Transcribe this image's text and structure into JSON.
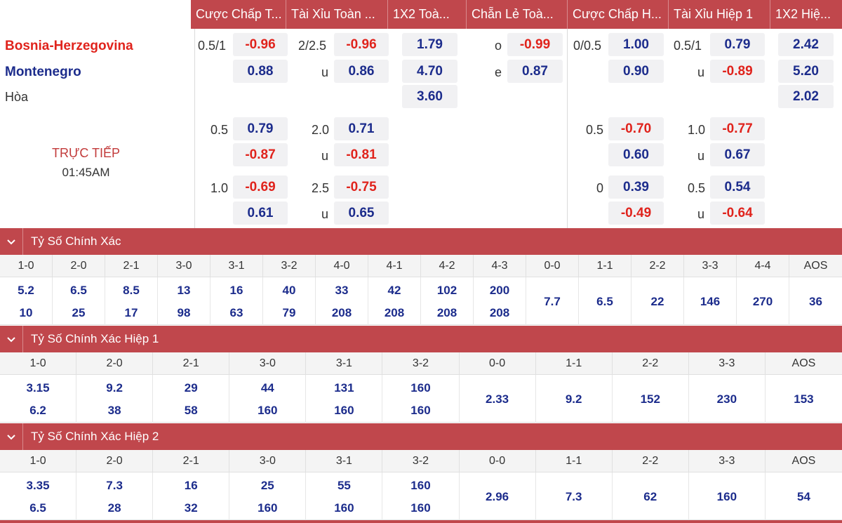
{
  "markets": [
    "Cược Chấp T...",
    "Tài Xỉu Toàn ...",
    "1X2 Toà...",
    "Chẵn Lẻ Toà...",
    "Cược Chấp H...",
    "Tài Xỉu Hiệp 1",
    "1X2 Hiệ..."
  ],
  "match": {
    "home": "Bosnia-Herzegovina",
    "away": "Montenegro",
    "draw": "Hòa",
    "status": "TRỰC TIẾP",
    "time": "01:45AM"
  },
  "lines": {
    "r1": {
      "ft_hdp": "0.5/1",
      "ft_hdp_home": "-0.96",
      "ft_ou": "2/2.5",
      "ft_ou_over": "-0.96",
      "x12_home": "1.79",
      "oe_o_lbl": "o",
      "oe_o": "-0.99",
      "h1_hdp": "0/0.5",
      "h1_hdp_home": "1.00",
      "h1_ou": "0.5/1",
      "h1_ou_over": "0.79",
      "h1_x12_home": "2.42"
    },
    "r2": {
      "ft_hdp_away": "0.88",
      "ft_ou_u": "u",
      "ft_ou_under": "0.86",
      "x12_away": "4.70",
      "oe_e_lbl": "e",
      "oe_e": "0.87",
      "h1_hdp_away": "0.90",
      "h1_ou_u": "u",
      "h1_ou_under": "-0.89",
      "h1_x12_away": "5.20"
    },
    "r3": {
      "x12_draw": "3.60",
      "h1_x12_draw": "2.02"
    },
    "r4": {
      "ft_hdp": "0.5",
      "ft_hdp_home": "0.79",
      "ft_ou": "2.0",
      "ft_ou_over": "0.71",
      "h1_hdp": "0.5",
      "h1_hdp_home": "-0.70",
      "h1_ou": "1.0",
      "h1_ou_over": "-0.77"
    },
    "r5": {
      "ft_hdp_away": "-0.87",
      "ft_ou_u": "u",
      "ft_ou_under": "-0.81",
      "h1_hdp_away": "0.60",
      "h1_ou_u": "u",
      "h1_ou_under": "0.67"
    },
    "r6": {
      "ft_hdp": "1.0",
      "ft_hdp_home": "-0.69",
      "ft_ou": "2.5",
      "ft_ou_over": "-0.75",
      "h1_hdp": "0",
      "h1_hdp_home": "0.39",
      "h1_ou": "0.5",
      "h1_ou_over": "0.54"
    },
    "r7": {
      "ft_hdp_away": "0.61",
      "ft_ou_u": "u",
      "ft_ou_under": "0.65",
      "h1_hdp_away": "-0.49",
      "h1_ou_u": "u",
      "h1_ou_under": "-0.64"
    }
  },
  "sections": [
    {
      "title": "Tỷ Số Chính Xác",
      "scores": [
        "1-0",
        "2-0",
        "2-1",
        "3-0",
        "3-1",
        "3-2",
        "4-0",
        "4-1",
        "4-2",
        "4-3",
        "0-0",
        "1-1",
        "2-2",
        "3-3",
        "4-4",
        "AOS"
      ],
      "top": [
        "5.2",
        "6.5",
        "8.5",
        "13",
        "16",
        "40",
        "33",
        "42",
        "102",
        "200",
        "",
        "",
        "",
        "",
        "",
        ""
      ],
      "bottom": [
        "10",
        "25",
        "17",
        "98",
        "63",
        "79",
        "208",
        "208",
        "208",
        "208",
        "",
        "",
        "",
        "",
        "",
        ""
      ],
      "single": [
        "",
        "",
        "",
        "",
        "",
        "",
        "",
        "",
        "",
        "",
        "7.7",
        "6.5",
        "22",
        "146",
        "270",
        "36"
      ]
    },
    {
      "title": "Tỷ Số Chính Xác Hiệp 1",
      "scores": [
        "1-0",
        "2-0",
        "2-1",
        "3-0",
        "3-1",
        "3-2",
        "0-0",
        "1-1",
        "2-2",
        "3-3",
        "AOS"
      ],
      "top": [
        "3.15",
        "9.2",
        "29",
        "44",
        "131",
        "160",
        "",
        "",
        "",
        "",
        ""
      ],
      "bottom": [
        "6.2",
        "38",
        "58",
        "160",
        "160",
        "160",
        "",
        "",
        "",
        "",
        ""
      ],
      "single": [
        "",
        "",
        "",
        "",
        "",
        "",
        "2.33",
        "9.2",
        "152",
        "230",
        "153"
      ]
    },
    {
      "title": "Tỷ Số Chính Xác Hiệp 2",
      "scores": [
        "1-0",
        "2-0",
        "2-1",
        "3-0",
        "3-1",
        "3-2",
        "0-0",
        "1-1",
        "2-2",
        "3-3",
        "AOS"
      ],
      "top": [
        "3.35",
        "7.3",
        "16",
        "25",
        "55",
        "160",
        "",
        "",
        "",
        "",
        ""
      ],
      "bottom": [
        "6.5",
        "28",
        "32",
        "160",
        "160",
        "160",
        "",
        "",
        "",
        "",
        ""
      ],
      "single": [
        "",
        "",
        "",
        "",
        "",
        "",
        "2.96",
        "7.3",
        "62",
        "160",
        "54"
      ]
    }
  ],
  "colors": {
    "accent": "#c0474c",
    "positive": "#1c2c8c",
    "negative": "#e0231c"
  },
  "icons": {
    "collapse": "chevron-down-icon"
  }
}
